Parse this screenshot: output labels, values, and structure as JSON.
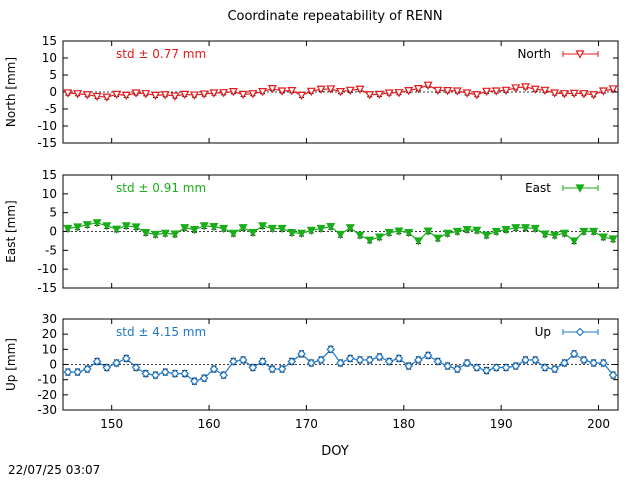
{
  "title": "Coordinate repeatability of RENN",
  "timestamp": "22/07/25 03:07",
  "chart_data": [
    {
      "type": "line",
      "panel": "north",
      "ylabel": "North [mm]",
      "std_label": "std ± 0.77 mm",
      "legend": "North",
      "legend_position": "top-right",
      "color": "#e41a1c",
      "marker": "triangle-down-open",
      "ylim": [
        -15,
        15
      ],
      "yticks": [
        "15",
        "10",
        "5",
        "0",
        "-5",
        "-10",
        "-15"
      ],
      "ytick_values": [
        15,
        10,
        5,
        0,
        -5,
        -10,
        -15
      ],
      "x": [
        145.5,
        146.5,
        147.5,
        148.5,
        149.5,
        150.5,
        151.5,
        152.5,
        153.5,
        154.5,
        155.5,
        156.5,
        157.5,
        158.5,
        159.5,
        160.5,
        161.5,
        162.5,
        163.5,
        164.5,
        165.5,
        166.5,
        167.5,
        168.5,
        169.5,
        170.5,
        171.5,
        172.5,
        173.5,
        174.5,
        175.5,
        176.5,
        177.5,
        178.5,
        179.5,
        180.5,
        181.5,
        182.5,
        183.5,
        184.5,
        185.5,
        186.5,
        187.5,
        188.5,
        189.5,
        190.5,
        191.5,
        192.5,
        193.5,
        194.5,
        195.5,
        196.5,
        197.5,
        198.5,
        199.5,
        200.5,
        201.5
      ],
      "values": [
        -0.3,
        -0.5,
        -0.8,
        -1.3,
        -1.5,
        -0.7,
        -1.0,
        -0.3,
        -0.5,
        -1.0,
        -0.8,
        -1.2,
        -0.7,
        -0.9,
        -0.6,
        -0.3,
        -0.2,
        0.1,
        -0.7,
        -0.5,
        0.1,
        1.0,
        0.3,
        0.4,
        -1.0,
        0.2,
        0.8,
        0.9,
        0.1,
        0.5,
        0.8,
        -0.8,
        -0.7,
        -0.3,
        -0.2,
        0.4,
        1.0,
        2.0,
        0.5,
        0.4,
        0.3,
        -0.3,
        -0.8,
        0.2,
        0.3,
        0.5,
        1.2,
        1.5,
        0.8,
        0.5,
        -0.3,
        -0.5,
        -0.4,
        -0.5,
        -0.8,
        0.3,
        0.9
      ],
      "err": [
        0.6,
        0.6,
        0.6,
        0.6,
        0.6,
        0.6,
        0.6,
        0.6,
        0.6,
        0.6,
        0.6,
        0.6,
        0.6,
        0.6,
        0.6,
        0.6,
        0.6,
        0.6,
        0.6,
        0.6,
        0.6,
        0.6,
        0.6,
        0.6,
        0.6,
        0.6,
        0.6,
        0.6,
        0.6,
        0.6,
        0.6,
        0.6,
        0.6,
        0.6,
        0.6,
        0.6,
        0.6,
        0.6,
        0.6,
        0.6,
        0.6,
        0.6,
        0.6,
        0.6,
        0.6,
        0.6,
        0.6,
        0.6,
        0.6,
        0.6,
        0.6,
        0.6,
        0.6,
        0.6,
        0.6,
        0.6,
        0.6
      ]
    },
    {
      "type": "line",
      "panel": "east",
      "ylabel": "East [mm]",
      "std_label": "std ± 0.91 mm",
      "legend": "East",
      "legend_position": "top-right",
      "color": "#1aad1a",
      "marker": "triangle-down-filled",
      "ylim": [
        -15,
        15
      ],
      "yticks": [
        "15",
        "10",
        "5",
        "0",
        "-5",
        "-10",
        "-15"
      ],
      "ytick_values": [
        15,
        10,
        5,
        0,
        -5,
        -10,
        -15
      ],
      "x": [
        145.5,
        146.5,
        147.5,
        148.5,
        149.5,
        150.5,
        151.5,
        152.5,
        153.5,
        154.5,
        155.5,
        156.5,
        157.5,
        158.5,
        159.5,
        160.5,
        161.5,
        162.5,
        163.5,
        164.5,
        165.5,
        166.5,
        167.5,
        168.5,
        169.5,
        170.5,
        171.5,
        172.5,
        173.5,
        174.5,
        175.5,
        176.5,
        177.5,
        178.5,
        179.5,
        180.5,
        181.5,
        182.5,
        183.5,
        184.5,
        185.5,
        186.5,
        187.5,
        188.5,
        189.5,
        190.5,
        191.5,
        192.5,
        193.5,
        194.5,
        195.5,
        196.5,
        197.5,
        198.5,
        199.5,
        200.5,
        201.5
      ],
      "values": [
        0.8,
        1.2,
        1.8,
        2.3,
        1.5,
        0.6,
        1.5,
        1.2,
        -0.3,
        -0.8,
        -0.5,
        -0.7,
        1.0,
        0.5,
        1.5,
        1.3,
        0.8,
        -0.5,
        1.0,
        -0.3,
        1.5,
        0.8,
        0.8,
        -0.3,
        -0.5,
        0.3,
        0.8,
        1.3,
        -0.8,
        1.0,
        -1.0,
        -2.3,
        -1.5,
        -0.3,
        0.1,
        -0.3,
        -2.5,
        0.1,
        -1.8,
        -0.5,
        0.0,
        0.5,
        0.3,
        -1.0,
        0.0,
        0.5,
        1.0,
        1.0,
        0.8,
        -0.7,
        -1.0,
        -0.5,
        -2.5,
        0.0,
        0.0,
        -1.5,
        -2.0
      ],
      "err": [
        0.7,
        0.7,
        0.7,
        0.7,
        0.7,
        0.7,
        0.7,
        0.7,
        0.7,
        0.7,
        0.7,
        0.7,
        0.7,
        0.7,
        0.7,
        0.7,
        0.7,
        0.7,
        0.7,
        0.7,
        0.7,
        0.7,
        0.7,
        0.7,
        0.7,
        0.7,
        0.7,
        0.7,
        0.7,
        0.7,
        0.7,
        0.7,
        0.7,
        0.7,
        0.7,
        0.7,
        0.7,
        0.7,
        0.7,
        0.7,
        0.7,
        0.7,
        0.7,
        0.7,
        0.7,
        0.7,
        0.7,
        0.7,
        0.7,
        0.7,
        0.7,
        0.7,
        0.7,
        0.7,
        0.7,
        0.7,
        0.7
      ]
    },
    {
      "type": "line",
      "panel": "up",
      "ylabel": "Up [mm]",
      "std_label": "std ± 4.15 mm",
      "legend": "Up",
      "legend_position": "top-right",
      "color": "#1f78c8",
      "marker": "diamond-open",
      "ylim": [
        -30,
        30
      ],
      "yticks": [
        "30",
        "20",
        "10",
        "0",
        "-10",
        "-20",
        "-30"
      ],
      "ytick_values": [
        30,
        20,
        10,
        0,
        -10,
        -20,
        -30
      ],
      "x": [
        145.5,
        146.5,
        147.5,
        148.5,
        149.5,
        150.5,
        151.5,
        152.5,
        153.5,
        154.5,
        155.5,
        156.5,
        157.5,
        158.5,
        159.5,
        160.5,
        161.5,
        162.5,
        163.5,
        164.5,
        165.5,
        166.5,
        167.5,
        168.5,
        169.5,
        170.5,
        171.5,
        172.5,
        173.5,
        174.5,
        175.5,
        176.5,
        177.5,
        178.5,
        179.5,
        180.5,
        181.5,
        182.5,
        183.5,
        184.5,
        185.5,
        186.5,
        187.5,
        188.5,
        189.5,
        190.5,
        191.5,
        192.5,
        193.5,
        194.5,
        195.5,
        196.5,
        197.5,
        198.5,
        199.5,
        200.5,
        201.5
      ],
      "values": [
        -5,
        -5,
        -3,
        2,
        -2,
        1,
        4,
        -2,
        -6,
        -7,
        -5,
        -6,
        -6,
        -11,
        -9,
        -3,
        -7,
        2,
        3,
        -2,
        2,
        -3,
        -3,
        2,
        7,
        1,
        3,
        10,
        1,
        4,
        3,
        3,
        5,
        2,
        4,
        -1,
        3,
        6,
        2,
        -1,
        -3,
        1,
        -2,
        -4,
        -2,
        -2,
        -1,
        3,
        3,
        -2,
        -3,
        1,
        7,
        3,
        1,
        1,
        -7
      ],
      "err": [
        2,
        2,
        2,
        2,
        2,
        2,
        2,
        2,
        2,
        2,
        2,
        2,
        2,
        2,
        2,
        2,
        2,
        2,
        2,
        2,
        2,
        2,
        2,
        2,
        2,
        2,
        2,
        2,
        2,
        2,
        2,
        2,
        2,
        2,
        2,
        2,
        2,
        2,
        2,
        2,
        2,
        2,
        2,
        2,
        2,
        2,
        2,
        2,
        2,
        2,
        2,
        2,
        2,
        2,
        2,
        2,
        2
      ]
    }
  ],
  "x_axis": {
    "label": "DOY",
    "xlim": [
      145,
      202
    ],
    "ticks": [
      "150",
      "160",
      "170",
      "180",
      "190",
      "200"
    ],
    "tick_values": [
      150,
      160,
      170,
      180,
      190,
      200
    ]
  }
}
